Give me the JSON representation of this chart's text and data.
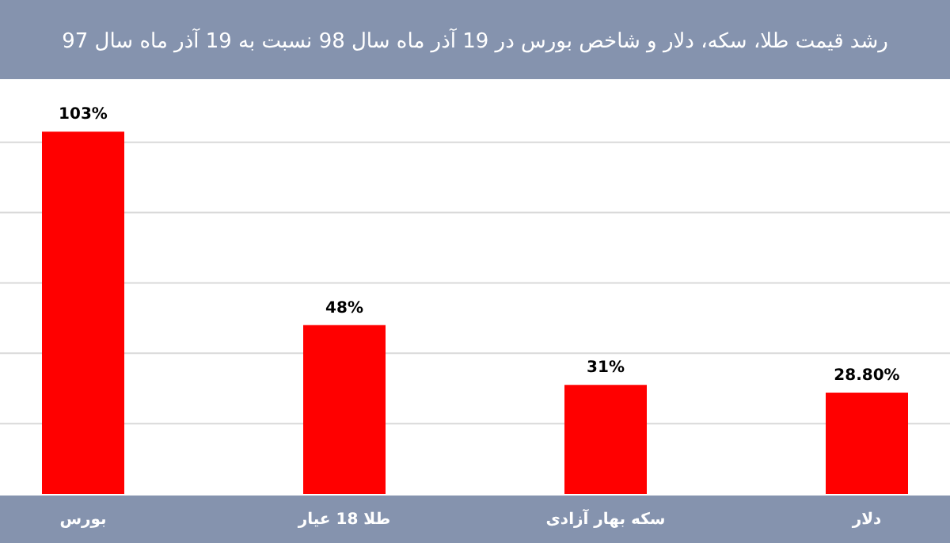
{
  "chart_data": {
    "type": "bar",
    "title": "رشد قیمت طلا، سکه، دلار و شاخص بورس در 19 آذر ماه سال 98 نسبت به 19 آذر ماه سال 97",
    "categories": [
      "بورس",
      "طلا 18 عیار",
      "سکه بهار آزادی",
      "دلار"
    ],
    "values": [
      103,
      48,
      31,
      28.8
    ],
    "value_labels": [
      "103%",
      "48%",
      "31%",
      "28.80%"
    ],
    "color": "#ff0000",
    "yticks": [
      {
        "value": 20,
        "label": null
      },
      {
        "value": 40,
        "label": null
      },
      {
        "value": 60,
        "label": null
      },
      {
        "value": 80,
        "label": null
      },
      {
        "value": 100,
        "label": null
      }
    ],
    "grid": "y"
  }
}
